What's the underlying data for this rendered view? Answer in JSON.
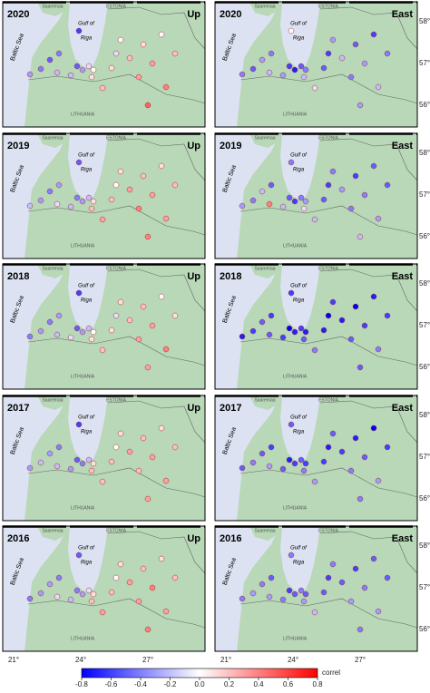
{
  "panels": [
    {
      "year": "2020",
      "component": "Up",
      "stations": [
        -0.3,
        -0.4,
        -0.5,
        -0.4,
        -0.2,
        -0.2,
        -0.5,
        -0.3,
        -0.1,
        0.0,
        0.1,
        0.2,
        0.1,
        -0.1,
        0.0,
        0.2,
        0.3,
        0.1,
        0.3,
        0.0,
        0.4,
        0.2,
        0.5,
        -0.6
      ]
    },
    {
      "year": "2020",
      "component": "East",
      "stations": [
        -0.4,
        -0.5,
        -0.3,
        -0.4,
        -0.2,
        -0.3,
        -0.6,
        -0.7,
        -0.5,
        -0.4,
        -0.2,
        -0.1,
        -0.5,
        -0.6,
        -0.3,
        -0.2,
        -0.4,
        -0.5,
        -0.3,
        -0.6,
        -0.2,
        -0.4,
        -0.3,
        0.0
      ]
    },
    {
      "year": "2019",
      "component": "Up",
      "stations": [
        -0.2,
        -0.3,
        -0.4,
        -0.3,
        -0.1,
        -0.2,
        -0.4,
        -0.3,
        -0.2,
        0.1,
        0.2,
        0.3,
        0.2,
        0.0,
        0.1,
        0.3,
        0.4,
        0.2,
        0.3,
        0.1,
        0.3,
        0.2,
        0.4,
        -0.5
      ]
    },
    {
      "year": "2019",
      "component": "East",
      "stations": [
        -0.3,
        -0.4,
        -0.2,
        -0.5,
        0.4,
        -0.2,
        -0.5,
        -0.6,
        -0.4,
        -0.3,
        -0.1,
        -0.2,
        -0.5,
        -0.6,
        -0.4,
        -0.3,
        -0.4,
        -0.6,
        -0.4,
        -0.5,
        -0.3,
        -0.5,
        -0.2,
        -0.4
      ]
    },
    {
      "year": "2018",
      "component": "Up",
      "stations": [
        -0.4,
        -0.3,
        -0.4,
        -0.3,
        -0.2,
        -0.1,
        -0.5,
        -0.3,
        -0.2,
        0.0,
        0.1,
        0.2,
        0.1,
        -0.1,
        0.1,
        0.2,
        0.3,
        0.2,
        0.3,
        0.0,
        0.4,
        0.1,
        0.3,
        -0.6
      ]
    },
    {
      "year": "2018",
      "component": "East",
      "stations": [
        -0.7,
        -0.6,
        -0.5,
        -0.6,
        -0.5,
        -0.6,
        -0.8,
        -0.7,
        -0.6,
        -0.7,
        -0.5,
        -0.4,
        -0.7,
        -0.8,
        -0.6,
        -0.7,
        -0.5,
        -0.8,
        -0.6,
        -0.7,
        -0.4,
        -0.6,
        -0.5,
        -0.6
      ]
    },
    {
      "year": "2017",
      "component": "Up",
      "stations": [
        -0.3,
        -0.2,
        -0.3,
        -0.4,
        -0.2,
        -0.3,
        -0.5,
        -0.4,
        -0.2,
        0.1,
        0.2,
        0.2,
        0.2,
        0.0,
        0.1,
        0.3,
        0.2,
        0.2,
        0.3,
        0.1,
        0.3,
        0.2,
        0.3,
        -0.6
      ]
    },
    {
      "year": "2017",
      "component": "East",
      "stations": [
        -0.5,
        -0.4,
        -0.5,
        -0.6,
        -0.3,
        -0.5,
        -0.7,
        -0.6,
        -0.5,
        -0.6,
        -0.4,
        -0.3,
        -0.6,
        -0.7,
        -0.5,
        -0.6,
        -0.4,
        -0.7,
        -0.5,
        -0.8,
        -0.3,
        -0.6,
        -0.4,
        -0.5
      ]
    },
    {
      "year": "2016",
      "component": "Up",
      "stations": [
        -0.4,
        -0.3,
        -0.3,
        -0.4,
        -0.1,
        -0.2,
        -0.4,
        -0.3,
        -0.1,
        0.1,
        0.2,
        0.3,
        0.2,
        0.0,
        0.1,
        0.3,
        0.3,
        0.2,
        0.4,
        0.1,
        0.3,
        0.2,
        0.4,
        -0.5
      ]
    },
    {
      "year": "2016",
      "component": "East",
      "stations": [
        -0.4,
        -0.3,
        -0.4,
        -0.5,
        -0.3,
        -0.4,
        -0.6,
        -0.5,
        -0.4,
        -0.5,
        -0.3,
        -0.2,
        -0.5,
        -0.6,
        -0.4,
        -0.5,
        -0.3,
        -0.6,
        -0.4,
        -0.5,
        -0.3,
        -0.5,
        -0.4,
        -0.4
      ]
    }
  ],
  "map_labels": {
    "saaremaa": "Saaremaa",
    "estonia": "ESTONIA",
    "gulf_line1": "Gulf of",
    "gulf_line2": "Riga",
    "baltic_sea": "Baltic Sea",
    "lithuania": "LITHUANIA"
  },
  "lon_ticks": [
    "21°",
    "24°",
    "27°"
  ],
  "lat_ticks": [
    "58°",
    "57°",
    "56°"
  ],
  "colorbar": {
    "label": "correl",
    "range": [
      -0.8,
      0.8
    ],
    "colors": [
      "#0000ff",
      "#ffffff",
      "#ff0000"
    ],
    "ticks": [
      -0.8,
      -0.6,
      -0.4,
      -0.2,
      {
        "value": 0,
        "label": "0.0"
      },
      0.2,
      0.4,
      0.6,
      0.8
    ]
  }
}
